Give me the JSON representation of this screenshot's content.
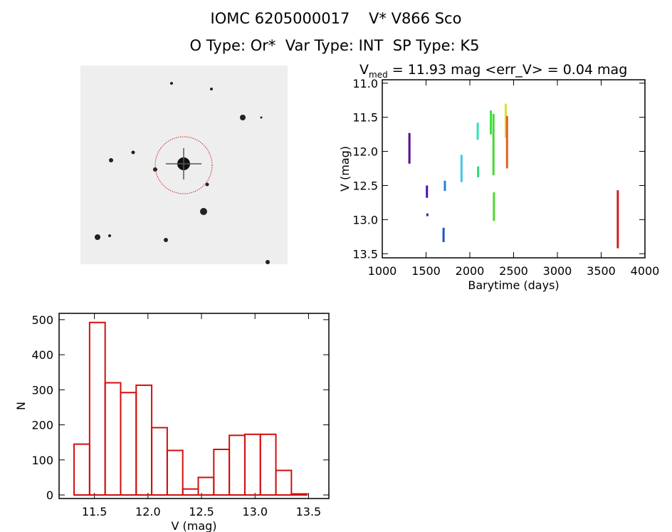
{
  "header": {
    "title": "IOMC 6205000017    V* V866 Sco",
    "subtitle": "O Type: Or*  Var Type: INT  SP Type: K5"
  },
  "finder_image": {
    "description_colors": {
      "background": "#eeeeee",
      "circle": "#c02020"
    }
  },
  "chart_data": [
    {
      "type": "scatter",
      "title_prefix": "V",
      "title_sub": "med",
      "title_rest": " = 11.93 mag <err_V> = 0.04 mag",
      "xlabel": "Barytime (days)",
      "ylabel": "V (mag)",
      "xlim": [
        1000,
        4000
      ],
      "ylim": [
        13.56,
        10.95
      ],
      "y_inverted": true,
      "xticks": [
        "1000",
        "1500",
        "2000",
        "2500",
        "3000",
        "3500",
        "4000"
      ],
      "yticks": [
        "11.0",
        "11.5",
        "12.0",
        "12.5",
        "13.0",
        "13.5"
      ],
      "grid": false,
      "segments": [
        {
          "x": 1310,
          "ymin": 11.73,
          "ymax": 12.18,
          "color": "#5a0a8a"
        },
        {
          "x": 1510,
          "ymin": 12.5,
          "ymax": 12.68,
          "color": "#4a10a8"
        },
        {
          "x": 1515,
          "ymin": 12.91,
          "ymax": 12.95,
          "color": "#3a20b8"
        },
        {
          "x": 1715,
          "ymin": 12.43,
          "ymax": 12.58,
          "color": "#2880d8"
        },
        {
          "x": 1700,
          "ymin": 13.12,
          "ymax": 13.33,
          "color": "#2050c8"
        },
        {
          "x": 1905,
          "ymin": 12.05,
          "ymax": 12.45,
          "color": "#40c8e8"
        },
        {
          "x": 2090,
          "ymin": 11.58,
          "ymax": 11.83,
          "color": "#30e0c0"
        },
        {
          "x": 2095,
          "ymin": 12.22,
          "ymax": 12.38,
          "color": "#30d878"
        },
        {
          "x": 2240,
          "ymin": 11.4,
          "ymax": 11.75,
          "color": "#40e040"
        },
        {
          "x": 2270,
          "ymin": 11.45,
          "ymax": 12.35,
          "color": "#48d830"
        },
        {
          "x": 2275,
          "ymin": 12.6,
          "ymax": 13.02,
          "color": "#50d830"
        },
        {
          "x": 2410,
          "ymin": 11.3,
          "ymax": 11.8,
          "color": "#e0e030"
        },
        {
          "x": 2425,
          "ymin": 11.48,
          "ymax": 12.25,
          "color": "#e06020"
        },
        {
          "x": 3690,
          "ymin": 12.57,
          "ymax": 13.42,
          "color": "#d02020"
        }
      ]
    },
    {
      "type": "bar",
      "xlabel": "V (mag)",
      "ylabel": "N",
      "xlim": [
        11.17,
        13.69
      ],
      "ylim": [
        0,
        518
      ],
      "xticks": [
        "11.5",
        "12.0",
        "12.5",
        "13.0",
        "13.5"
      ],
      "yticks": [
        "0",
        "100",
        "200",
        "300",
        "400",
        "500"
      ],
      "bin_start": 11.31,
      "bin_width": 0.145,
      "values": [
        145,
        492,
        320,
        292,
        313,
        192,
        127,
        17,
        50,
        130,
        170,
        173,
        173,
        70,
        3
      ],
      "color": "#d01010",
      "grid": false
    }
  ]
}
